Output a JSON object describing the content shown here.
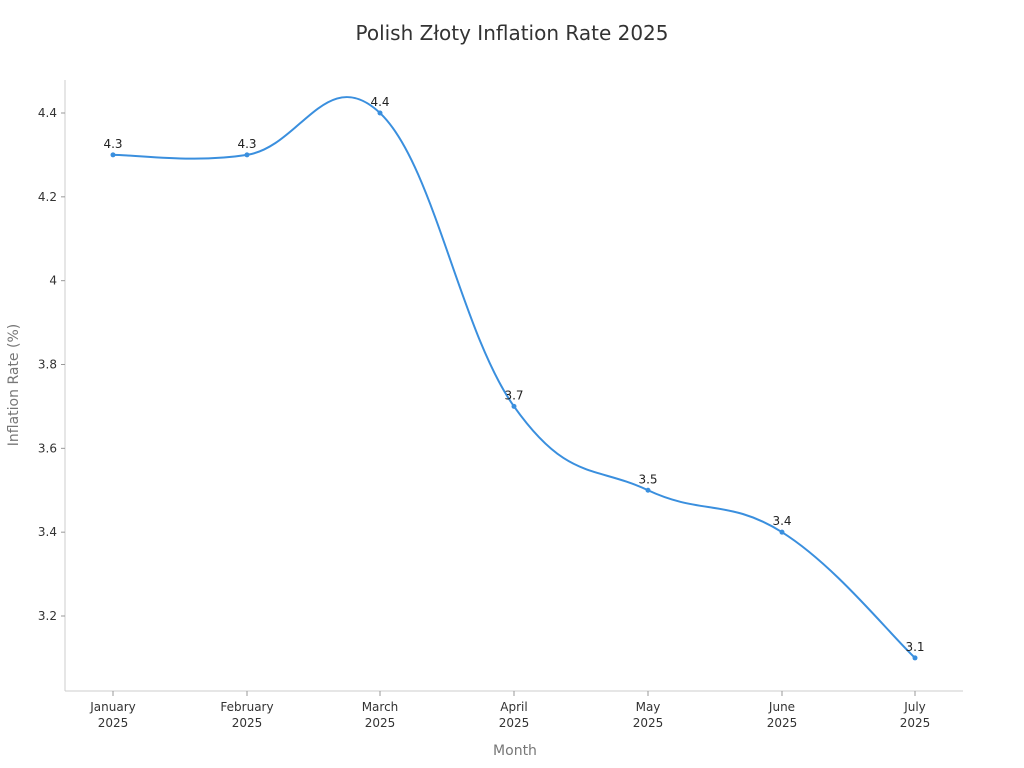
{
  "chart_data": {
    "type": "line",
    "title": "Polish Złoty Inflation Rate 2025",
    "xlabel": "Month",
    "ylabel": "Inflation Rate (%)",
    "categories": [
      [
        "January",
        "2025"
      ],
      [
        "February",
        "2025"
      ],
      [
        "March",
        "2025"
      ],
      [
        "April",
        "2025"
      ],
      [
        "May",
        "2025"
      ],
      [
        "June",
        "2025"
      ],
      [
        "July",
        "2025"
      ]
    ],
    "series": [
      {
        "name": "Inflation Rate",
        "values": [
          4.3,
          4.3,
          4.4,
          3.7,
          3.5,
          3.4,
          3.1
        ],
        "color": "#3a8fde"
      }
    ],
    "yticks": [
      4.4,
      4.2,
      4,
      3.8,
      3.6,
      3.4,
      3.2
    ],
    "ytick_labels": [
      "4.4",
      "4.2",
      "4",
      "3.8",
      "3.6",
      "3.4",
      "3.2"
    ],
    "data_labels": [
      "4.3",
      "4.3",
      "4.4",
      "3.7",
      "3.5",
      "3.4",
      "3.1"
    ],
    "ylim": [
      3.02,
      4.48
    ],
    "grid": false,
    "legend": "none",
    "smooth": true
  }
}
